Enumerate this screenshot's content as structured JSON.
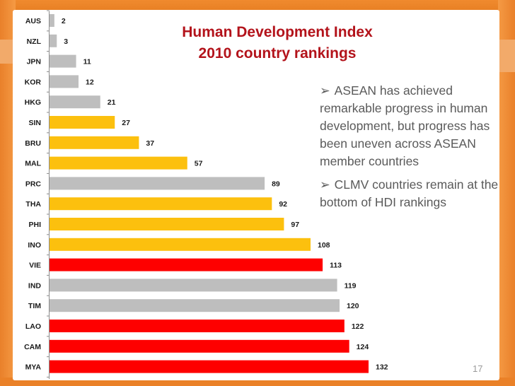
{
  "chart_data": {
    "type": "bar",
    "orientation": "horizontal",
    "title": "Human Development Index",
    "subtitle": "2010 country rankings",
    "categories": [
      "AUS",
      "NZL",
      "JPN",
      "KOR",
      "HKG",
      "SIN",
      "BRU",
      "MAL",
      "PRC",
      "THA",
      "PHI",
      "INO",
      "VIE",
      "IND",
      "TIM",
      "LAO",
      "CAM",
      "MYA"
    ],
    "values": [
      2,
      3,
      11,
      12,
      21,
      27,
      37,
      57,
      89,
      92,
      97,
      108,
      113,
      119,
      120,
      122,
      124,
      132
    ],
    "groups": [
      "other",
      "other",
      "other",
      "other",
      "other",
      "clmv_no",
      "clmv_no",
      "clmv_no",
      "other",
      "clmv_no",
      "clmv_no",
      "clmv_no",
      "clmv",
      "other",
      "other",
      "clmv",
      "clmv",
      "clmv"
    ],
    "group_colors": {
      "other": "#bebebe",
      "clmv_no": "#fcc00e",
      "clmv": "#fe0000"
    },
    "xlim": [
      0,
      132
    ],
    "xlabel": "",
    "ylabel": "",
    "grid": false,
    "legend": "none"
  },
  "notes": [
    {
      "marker": "➢",
      "text": "ASEAN has achieved remarkable progress in human development, but progress has been uneven across ASEAN member countries"
    },
    {
      "marker": "➢",
      "text": "CLMV countries remain at the bottom of HDI rankings"
    }
  ],
  "page_number": "17"
}
